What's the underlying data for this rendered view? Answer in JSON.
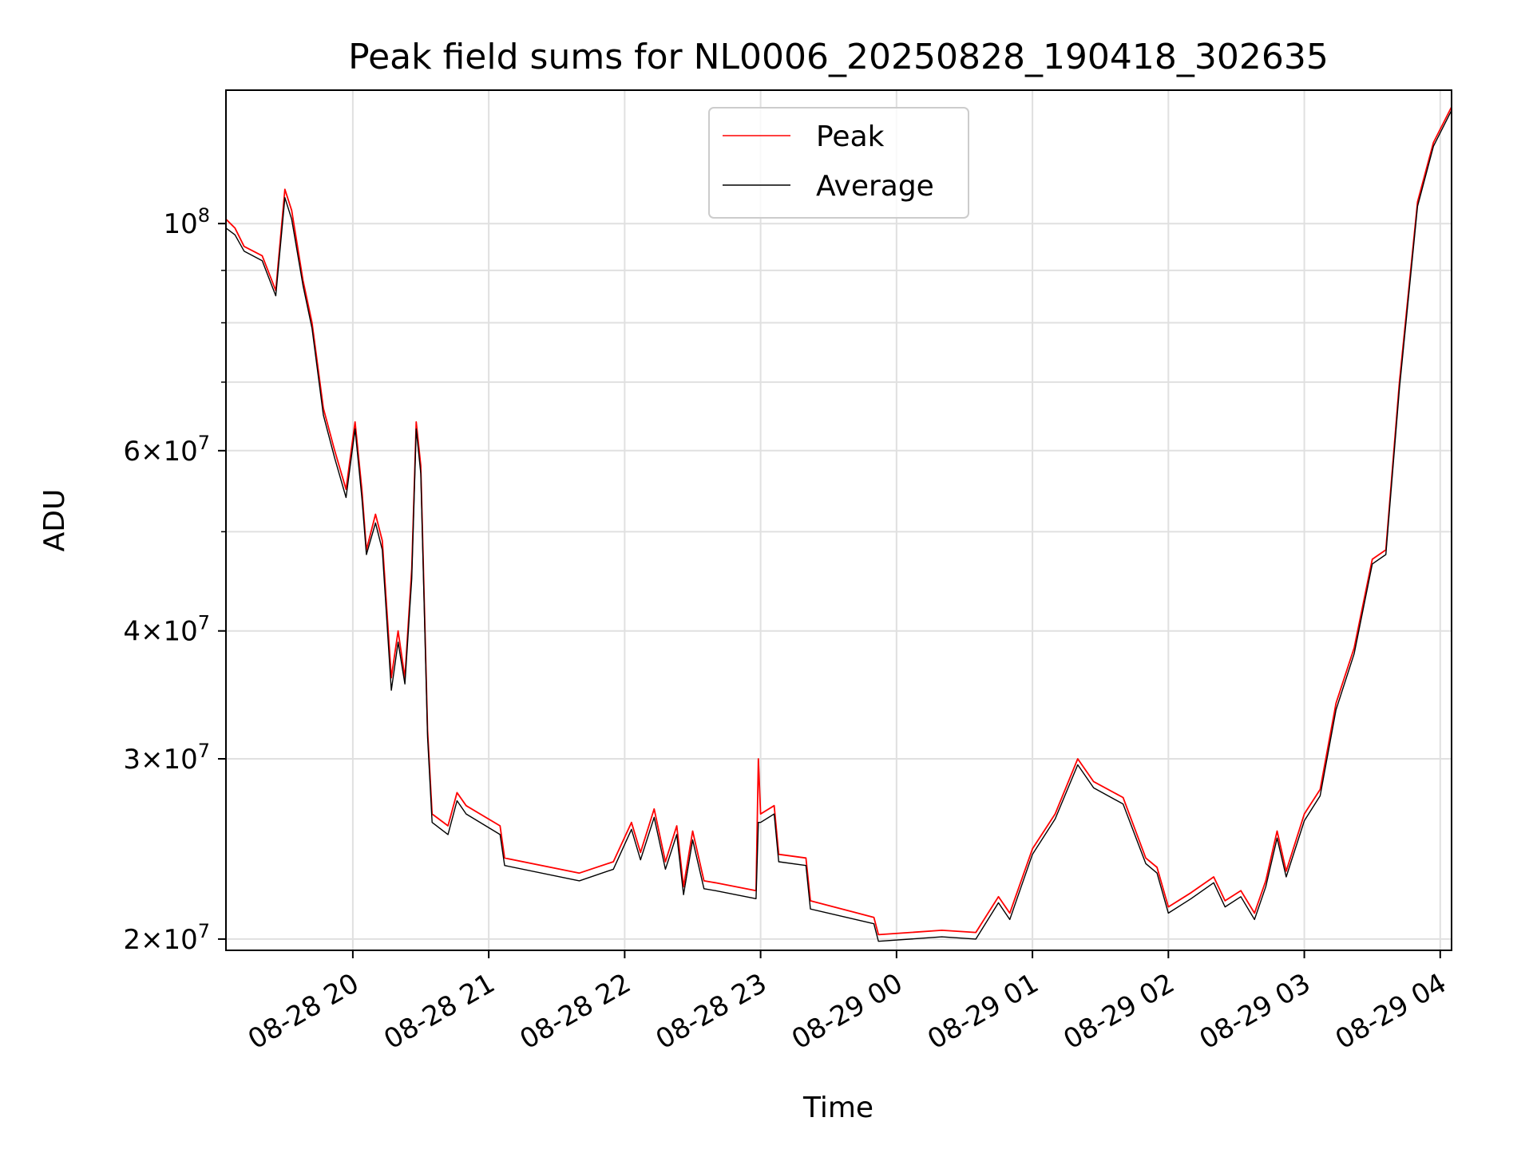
{
  "chart_data": {
    "type": "line",
    "title": "Peak field sums for NL0006_20250828_190418_302635",
    "xlabel": "Time",
    "ylabel": "ADU",
    "y_scale": "log",
    "grid": true,
    "legend_position": "top-center",
    "x_ticks": [
      {
        "value": "2025-08-28T20:00",
        "label": "08-28 20"
      },
      {
        "value": "2025-08-28T21:00",
        "label": "08-28 21"
      },
      {
        "value": "2025-08-28T22:00",
        "label": "08-28 22"
      },
      {
        "value": "2025-08-28T23:00",
        "label": "08-28 23"
      },
      {
        "value": "2025-08-29T00:00",
        "label": "08-29 00"
      },
      {
        "value": "2025-08-29T01:00",
        "label": "08-29 01"
      },
      {
        "value": "2025-08-29T02:00",
        "label": "08-29 02"
      },
      {
        "value": "2025-08-29T03:00",
        "label": "08-29 03"
      },
      {
        "value": "2025-08-29T04:00",
        "label": "08-29 04"
      }
    ],
    "y_ticks": [
      {
        "value": 20000000,
        "mant": "2",
        "exp": "7"
      },
      {
        "value": 30000000,
        "mant": "3",
        "exp": "7"
      },
      {
        "value": 40000000,
        "mant": "4",
        "exp": "7"
      },
      {
        "value": 60000000,
        "mant": "6",
        "exp": "7"
      },
      {
        "value": 100000000,
        "mant": "",
        "exp": "8"
      }
    ],
    "x_range": [
      "2025-08-28T19:04",
      "2025-08-29T04:05"
    ],
    "ylim": [
      19500000,
      135000000
    ],
    "series": [
      {
        "name": "Peak",
        "color": "#ff0000",
        "points": [
          [
            "2025-08-28T19:04",
            101000000
          ],
          [
            "2025-08-28T19:08",
            99000000
          ],
          [
            "2025-08-28T19:12",
            95000000
          ],
          [
            "2025-08-28T19:20",
            93000000
          ],
          [
            "2025-08-28T19:26",
            86000000
          ],
          [
            "2025-08-28T19:30",
            108000000
          ],
          [
            "2025-08-28T19:33",
            103000000
          ],
          [
            "2025-08-28T19:38",
            88000000
          ],
          [
            "2025-08-28T19:42",
            80000000
          ],
          [
            "2025-08-28T19:47",
            66000000
          ],
          [
            "2025-08-28T19:52",
            60000000
          ],
          [
            "2025-08-28T19:57",
            55000000
          ],
          [
            "2025-08-28T20:01",
            64000000
          ],
          [
            "2025-08-28T20:04",
            55000000
          ],
          [
            "2025-08-28T20:06",
            48000000
          ],
          [
            "2025-08-28T20:10",
            52000000
          ],
          [
            "2025-08-28T20:13",
            49000000
          ],
          [
            "2025-08-28T20:17",
            36000000
          ],
          [
            "2025-08-28T20:20",
            40000000
          ],
          [
            "2025-08-28T20:23",
            36000000
          ],
          [
            "2025-08-28T20:26",
            46000000
          ],
          [
            "2025-08-28T20:28",
            64000000
          ],
          [
            "2025-08-28T20:30",
            58000000
          ],
          [
            "2025-08-28T20:33",
            32000000
          ],
          [
            "2025-08-28T20:35",
            26500000
          ],
          [
            "2025-08-28T20:42",
            25800000
          ],
          [
            "2025-08-28T20:46",
            27800000
          ],
          [
            "2025-08-28T20:50",
            27000000
          ],
          [
            "2025-08-28T21:05",
            25800000
          ],
          [
            "2025-08-28T21:07",
            24000000
          ],
          [
            "2025-08-28T21:40",
            23200000
          ],
          [
            "2025-08-28T21:55",
            23800000
          ],
          [
            "2025-08-28T22:03",
            26000000
          ],
          [
            "2025-08-28T22:07",
            24300000
          ],
          [
            "2025-08-28T22:13",
            26800000
          ],
          [
            "2025-08-28T22:18",
            23800000
          ],
          [
            "2025-08-28T22:23",
            25800000
          ],
          [
            "2025-08-28T22:26",
            22500000
          ],
          [
            "2025-08-28T22:30",
            25500000
          ],
          [
            "2025-08-28T22:35",
            22800000
          ],
          [
            "2025-08-28T22:40",
            22700000
          ],
          [
            "2025-08-28T22:58",
            22300000
          ],
          [
            "2025-08-28T22:59",
            30000000
          ],
          [
            "2025-08-28T23:00",
            26500000
          ],
          [
            "2025-08-28T23:06",
            27000000
          ],
          [
            "2025-08-28T23:08",
            24200000
          ],
          [
            "2025-08-28T23:20",
            24000000
          ],
          [
            "2025-08-28T23:22",
            21800000
          ],
          [
            "2025-08-28T23:50",
            21000000
          ],
          [
            "2025-08-28T23:52",
            20200000
          ],
          [
            "2025-08-29T00:20",
            20400000
          ],
          [
            "2025-08-29T00:35",
            20300000
          ],
          [
            "2025-08-29T00:45",
            22000000
          ],
          [
            "2025-08-29T00:50",
            21200000
          ],
          [
            "2025-08-29T01:00",
            24500000
          ],
          [
            "2025-08-29T01:10",
            26500000
          ],
          [
            "2025-08-29T01:20",
            30000000
          ],
          [
            "2025-08-29T01:27",
            28500000
          ],
          [
            "2025-08-29T01:40",
            27500000
          ],
          [
            "2025-08-29T01:50",
            24000000
          ],
          [
            "2025-08-29T01:55",
            23500000
          ],
          [
            "2025-08-29T02:00",
            21500000
          ],
          [
            "2025-08-29T02:10",
            22200000
          ],
          [
            "2025-08-29T02:20",
            23000000
          ],
          [
            "2025-08-29T02:25",
            21800000
          ],
          [
            "2025-08-29T02:32",
            22300000
          ],
          [
            "2025-08-29T02:38",
            21200000
          ],
          [
            "2025-08-29T02:43",
            22800000
          ],
          [
            "2025-08-29T02:48",
            25500000
          ],
          [
            "2025-08-29T02:52",
            23300000
          ],
          [
            "2025-08-29T03:00",
            26500000
          ],
          [
            "2025-08-29T03:07",
            28000000
          ],
          [
            "2025-08-29T03:14",
            34000000
          ],
          [
            "2025-08-29T03:22",
            38500000
          ],
          [
            "2025-08-29T03:30",
            47000000
          ],
          [
            "2025-08-29T03:36",
            48000000
          ],
          [
            "2025-08-29T03:42",
            70000000
          ],
          [
            "2025-08-29T03:50",
            105000000
          ],
          [
            "2025-08-29T03:57",
            120000000
          ],
          [
            "2025-08-29T04:05",
            130000000
          ]
        ]
      },
      {
        "name": "Average",
        "color": "#000000",
        "points": [
          [
            "2025-08-28T19:04",
            99000000
          ],
          [
            "2025-08-28T19:08",
            97500000
          ],
          [
            "2025-08-28T19:12",
            94000000
          ],
          [
            "2025-08-28T19:20",
            92000000
          ],
          [
            "2025-08-28T19:26",
            85000000
          ],
          [
            "2025-08-28T19:30",
            106000000
          ],
          [
            "2025-08-28T19:33",
            101000000
          ],
          [
            "2025-08-28T19:38",
            87000000
          ],
          [
            "2025-08-28T19:42",
            79000000
          ],
          [
            "2025-08-28T19:47",
            65000000
          ],
          [
            "2025-08-28T19:52",
            59000000
          ],
          [
            "2025-08-28T19:57",
            54000000
          ],
          [
            "2025-08-28T20:01",
            63000000
          ],
          [
            "2025-08-28T20:04",
            54000000
          ],
          [
            "2025-08-28T20:06",
            47500000
          ],
          [
            "2025-08-28T20:10",
            51000000
          ],
          [
            "2025-08-28T20:13",
            48000000
          ],
          [
            "2025-08-28T20:17",
            35000000
          ],
          [
            "2025-08-28T20:20",
            39000000
          ],
          [
            "2025-08-28T20:23",
            35500000
          ],
          [
            "2025-08-28T20:26",
            45000000
          ],
          [
            "2025-08-28T20:28",
            63000000
          ],
          [
            "2025-08-28T20:30",
            57000000
          ],
          [
            "2025-08-28T20:33",
            31500000
          ],
          [
            "2025-08-28T20:35",
            26000000
          ],
          [
            "2025-08-28T20:42",
            25300000
          ],
          [
            "2025-08-28T20:46",
            27300000
          ],
          [
            "2025-08-28T20:50",
            26500000
          ],
          [
            "2025-08-28T21:05",
            25300000
          ],
          [
            "2025-08-28T21:07",
            23600000
          ],
          [
            "2025-08-28T21:40",
            22800000
          ],
          [
            "2025-08-28T21:55",
            23400000
          ],
          [
            "2025-08-28T22:03",
            25600000
          ],
          [
            "2025-08-28T22:07",
            23900000
          ],
          [
            "2025-08-28T22:13",
            26300000
          ],
          [
            "2025-08-28T22:18",
            23400000
          ],
          [
            "2025-08-28T22:23",
            25300000
          ],
          [
            "2025-08-28T22:26",
            22100000
          ],
          [
            "2025-08-28T22:30",
            25000000
          ],
          [
            "2025-08-28T22:35",
            22400000
          ],
          [
            "2025-08-28T22:40",
            22300000
          ],
          [
            "2025-08-28T22:58",
            21900000
          ],
          [
            "2025-08-28T22:59",
            26000000
          ],
          [
            "2025-08-28T23:00",
            26000000
          ],
          [
            "2025-08-28T23:06",
            26500000
          ],
          [
            "2025-08-28T23:08",
            23800000
          ],
          [
            "2025-08-28T23:20",
            23600000
          ],
          [
            "2025-08-28T23:22",
            21400000
          ],
          [
            "2025-08-28T23:50",
            20700000
          ],
          [
            "2025-08-28T23:52",
            19900000
          ],
          [
            "2025-08-29T00:20",
            20100000
          ],
          [
            "2025-08-29T00:35",
            20000000
          ],
          [
            "2025-08-29T00:45",
            21700000
          ],
          [
            "2025-08-29T00:50",
            20900000
          ],
          [
            "2025-08-29T01:00",
            24200000
          ],
          [
            "2025-08-29T01:10",
            26200000
          ],
          [
            "2025-08-29T01:20",
            29600000
          ],
          [
            "2025-08-29T01:27",
            28100000
          ],
          [
            "2025-08-29T01:40",
            27100000
          ],
          [
            "2025-08-29T01:50",
            23700000
          ],
          [
            "2025-08-29T01:55",
            23200000
          ],
          [
            "2025-08-29T02:00",
            21200000
          ],
          [
            "2025-08-29T02:10",
            21900000
          ],
          [
            "2025-08-29T02:20",
            22700000
          ],
          [
            "2025-08-29T02:25",
            21500000
          ],
          [
            "2025-08-29T02:32",
            22000000
          ],
          [
            "2025-08-29T02:38",
            20900000
          ],
          [
            "2025-08-29T02:43",
            22500000
          ],
          [
            "2025-08-29T02:48",
            25100000
          ],
          [
            "2025-08-29T02:52",
            23000000
          ],
          [
            "2025-08-29T03:00",
            26100000
          ],
          [
            "2025-08-29T03:07",
            27600000
          ],
          [
            "2025-08-29T03:14",
            33500000
          ],
          [
            "2025-08-29T03:22",
            38000000
          ],
          [
            "2025-08-29T03:30",
            46500000
          ],
          [
            "2025-08-29T03:36",
            47500000
          ],
          [
            "2025-08-29T03:42",
            69000000
          ],
          [
            "2025-08-29T03:50",
            104000000
          ],
          [
            "2025-08-29T03:57",
            119000000
          ],
          [
            "2025-08-29T04:05",
            129000000
          ]
        ]
      }
    ]
  }
}
